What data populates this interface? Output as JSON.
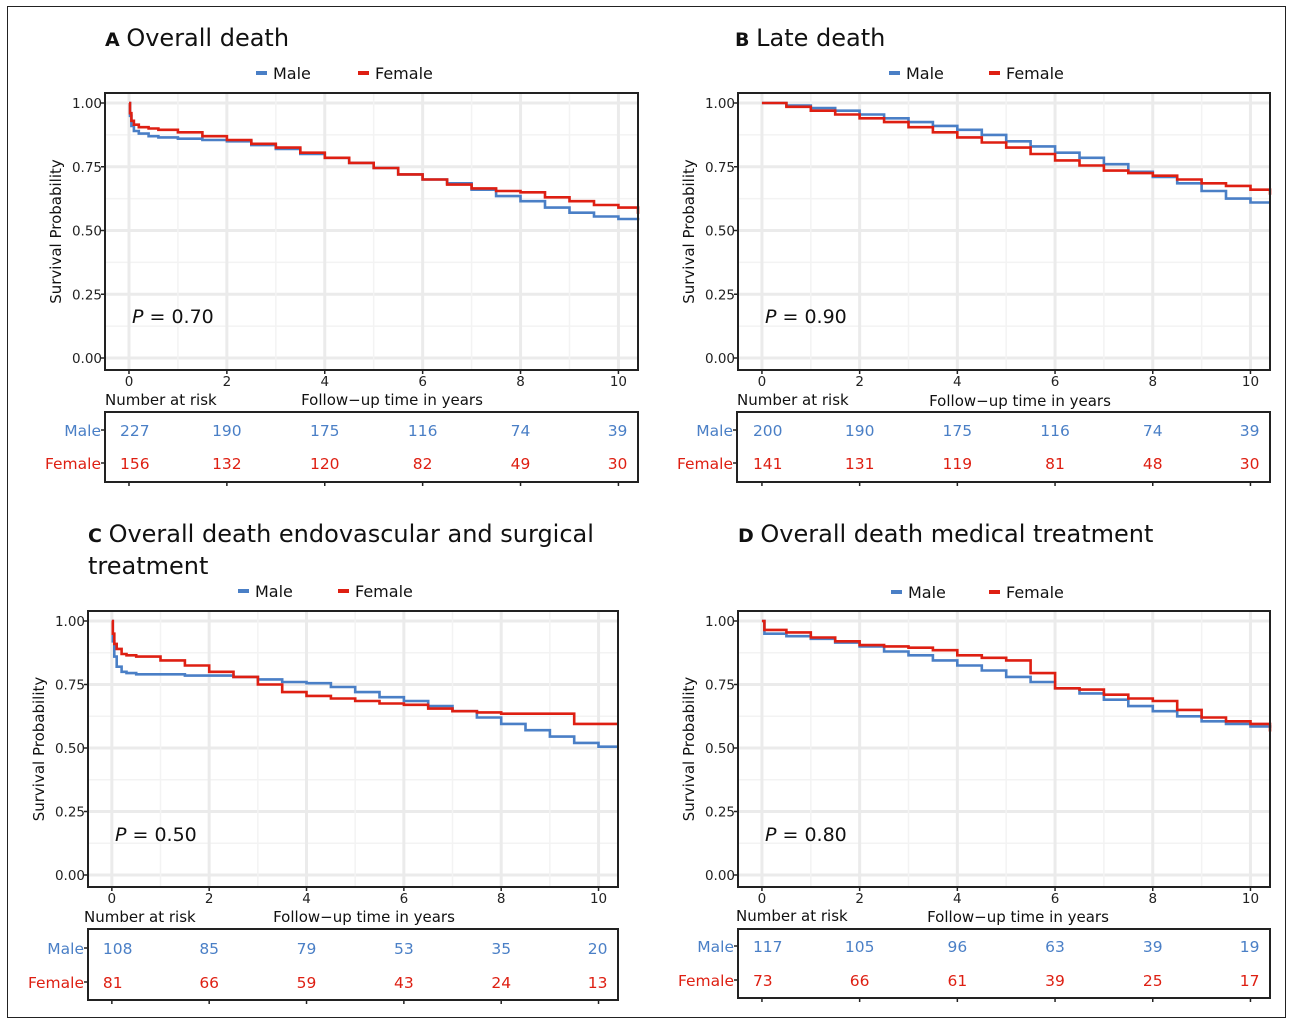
{
  "series_colors": {
    "Male": "#4a7fc6",
    "Female": "#de1f12"
  },
  "chart_data": [
    {
      "type": "line",
      "panel_letter": "A",
      "title": "Overall death",
      "legend": [
        "Male",
        "Female"
      ],
      "legend_position": "top",
      "xlabel": "Follow−up time in years",
      "ylabel": "Survival Probability",
      "xlim": [
        0,
        10.4
      ],
      "ylim": [
        0,
        1
      ],
      "xticks": [
        "0",
        "2",
        "4",
        "6",
        "8",
        "10"
      ],
      "yticks": [
        "0.00",
        "0.25",
        "0.50",
        "0.75",
        "1.00"
      ],
      "grid": true,
      "pvalue": "P = 0.70",
      "series": [
        {
          "name": "Male",
          "x": [
            0,
            0.02,
            0.05,
            0.1,
            0.2,
            0.4,
            0.6,
            1,
            1.5,
            2,
            2.5,
            3,
            3.5,
            4,
            4.5,
            5,
            5.5,
            6,
            6.5,
            7,
            7.5,
            8,
            8.5,
            9,
            9.5,
            10,
            10.4
          ],
          "y": [
            1,
            0.95,
            0.91,
            0.89,
            0.88,
            0.87,
            0.865,
            0.86,
            0.855,
            0.85,
            0.835,
            0.82,
            0.8,
            0.785,
            0.765,
            0.745,
            0.72,
            0.7,
            0.685,
            0.66,
            0.635,
            0.615,
            0.59,
            0.57,
            0.555,
            0.545,
            0.54
          ]
        },
        {
          "name": "Female",
          "x": [
            0,
            0.02,
            0.05,
            0.1,
            0.2,
            0.4,
            0.6,
            1,
            1.5,
            2,
            2.5,
            3,
            3.5,
            4,
            4.5,
            5,
            5.5,
            6,
            6.5,
            7,
            7.5,
            8,
            8.5,
            9,
            9.5,
            10,
            10.4
          ],
          "y": [
            1,
            0.96,
            0.93,
            0.915,
            0.905,
            0.9,
            0.895,
            0.885,
            0.87,
            0.855,
            0.84,
            0.825,
            0.805,
            0.785,
            0.765,
            0.745,
            0.72,
            0.7,
            0.68,
            0.665,
            0.655,
            0.65,
            0.63,
            0.615,
            0.6,
            0.59,
            0.565
          ]
        }
      ],
      "risk_table": {
        "title": "Number at risk",
        "rows": [
          {
            "name": "Male",
            "values": [
              "227",
              "190",
              "175",
              "116",
              "74",
              "39"
            ]
          },
          {
            "name": "Female",
            "values": [
              "156",
              "132",
              "120",
              "82",
              "49",
              "30"
            ]
          }
        ]
      }
    },
    {
      "type": "line",
      "panel_letter": "B",
      "title": "Late death",
      "legend": [
        "Male",
        "Female"
      ],
      "legend_position": "top",
      "xlabel": "Follow−up time in years",
      "ylabel": "Survival Probability",
      "xlim": [
        0,
        10.4
      ],
      "ylim": [
        0,
        1
      ],
      "xticks": [
        "0",
        "2",
        "4",
        "6",
        "8",
        "10"
      ],
      "yticks": [
        "0.00",
        "0.25",
        "0.50",
        "0.75",
        "1.00"
      ],
      "grid": true,
      "pvalue": "P = 0.90",
      "series": [
        {
          "name": "Male",
          "x": [
            0,
            0.5,
            1,
            1.5,
            2,
            2.5,
            3,
            3.5,
            4,
            4.5,
            5,
            5.5,
            6,
            6.5,
            7,
            7.5,
            8,
            8.5,
            9,
            9.5,
            10,
            10.4
          ],
          "y": [
            1,
            0.99,
            0.98,
            0.97,
            0.955,
            0.94,
            0.925,
            0.91,
            0.895,
            0.875,
            0.85,
            0.83,
            0.805,
            0.785,
            0.76,
            0.73,
            0.71,
            0.685,
            0.655,
            0.625,
            0.61,
            0.61
          ]
        },
        {
          "name": "Female",
          "x": [
            0,
            0.5,
            1,
            1.5,
            2,
            2.5,
            3,
            3.5,
            4,
            4.5,
            5,
            5.5,
            6,
            6.5,
            7,
            7.5,
            8,
            8.5,
            9,
            9.5,
            10,
            10.4
          ],
          "y": [
            1,
            0.985,
            0.97,
            0.955,
            0.94,
            0.925,
            0.905,
            0.885,
            0.865,
            0.845,
            0.825,
            0.8,
            0.775,
            0.755,
            0.735,
            0.725,
            0.715,
            0.7,
            0.685,
            0.675,
            0.66,
            0.64
          ]
        }
      ],
      "risk_table": {
        "title": "Number at risk",
        "rows": [
          {
            "name": "Male",
            "values": [
              "200",
              "190",
              "175",
              "116",
              "74",
              "39"
            ]
          },
          {
            "name": "Female",
            "values": [
              "141",
              "131",
              "119",
              "81",
              "48",
              "30"
            ]
          }
        ]
      }
    },
    {
      "type": "line",
      "panel_letter": "C",
      "title": "Overall death endovascular and surgical treatment",
      "legend": [
        "Male",
        "Female"
      ],
      "legend_position": "top",
      "xlabel": "Follow−up time in years",
      "ylabel": "Survival Probability",
      "xlim": [
        0,
        10.4
      ],
      "ylim": [
        0,
        1
      ],
      "xticks": [
        "0",
        "2",
        "4",
        "6",
        "8",
        "10"
      ],
      "yticks": [
        "0.00",
        "0.25",
        "0.50",
        "0.75",
        "1.00"
      ],
      "grid": true,
      "pvalue": "P = 0.50",
      "series": [
        {
          "name": "Male",
          "x": [
            0,
            0.02,
            0.05,
            0.1,
            0.2,
            0.3,
            0.5,
            1,
            1.5,
            2,
            2.5,
            3,
            3.5,
            4,
            4.5,
            5,
            5.5,
            6,
            6.5,
            7,
            7.5,
            8,
            8.5,
            9,
            9.5,
            10,
            10.4
          ],
          "y": [
            1,
            0.92,
            0.86,
            0.82,
            0.8,
            0.795,
            0.79,
            0.79,
            0.785,
            0.785,
            0.78,
            0.77,
            0.76,
            0.755,
            0.74,
            0.72,
            0.7,
            0.685,
            0.665,
            0.645,
            0.62,
            0.595,
            0.57,
            0.545,
            0.52,
            0.505,
            0.505
          ]
        },
        {
          "name": "Female",
          "x": [
            0,
            0.02,
            0.05,
            0.1,
            0.2,
            0.3,
            0.5,
            1,
            1.5,
            2,
            2.5,
            3,
            3.5,
            4,
            4.5,
            5,
            5.5,
            6,
            6.5,
            7,
            7.5,
            8,
            8.5,
            9,
            9.4,
            9.5,
            10,
            10.4
          ],
          "y": [
            1,
            0.95,
            0.91,
            0.89,
            0.87,
            0.865,
            0.86,
            0.845,
            0.825,
            0.8,
            0.78,
            0.75,
            0.72,
            0.705,
            0.695,
            0.685,
            0.675,
            0.67,
            0.655,
            0.645,
            0.64,
            0.635,
            0.635,
            0.635,
            0.635,
            0.595,
            0.595,
            0.595
          ]
        }
      ],
      "risk_table": {
        "title": "Number at risk",
        "rows": [
          {
            "name": "Male",
            "values": [
              "108",
              "85",
              "79",
              "53",
              "35",
              "20"
            ]
          },
          {
            "name": "Female",
            "values": [
              "81",
              "66",
              "59",
              "43",
              "24",
              "13"
            ]
          }
        ]
      }
    },
    {
      "type": "line",
      "panel_letter": "D",
      "title": "Overall death medical treatment",
      "legend": [
        "Male",
        "Female"
      ],
      "legend_position": "top",
      "xlabel": "Follow−up time in years",
      "ylabel": "Survival Probability",
      "xlim": [
        0,
        10.4
      ],
      "ylim": [
        0,
        1
      ],
      "xticks": [
        "0",
        "2",
        "4",
        "6",
        "8",
        "10"
      ],
      "yticks": [
        "0.00",
        "0.25",
        "0.50",
        "0.75",
        "1.00"
      ],
      "grid": true,
      "pvalue": "P = 0.80",
      "series": [
        {
          "name": "Male",
          "x": [
            0,
            0.05,
            0.5,
            1,
            1.5,
            2,
            2.5,
            3,
            3.5,
            4,
            4.5,
            5,
            5.5,
            6,
            6.5,
            7,
            7.5,
            8,
            8.5,
            9,
            9.5,
            10,
            10.4
          ],
          "y": [
            1,
            0.95,
            0.94,
            0.93,
            0.915,
            0.9,
            0.88,
            0.865,
            0.845,
            0.825,
            0.805,
            0.78,
            0.76,
            0.735,
            0.715,
            0.69,
            0.665,
            0.645,
            0.625,
            0.605,
            0.595,
            0.585,
            0.58
          ]
        },
        {
          "name": "Female",
          "x": [
            0,
            0.05,
            0.5,
            1,
            1.5,
            2,
            2.5,
            3,
            3.5,
            4,
            4.5,
            5,
            5.5,
            6,
            6.5,
            7,
            7.5,
            8,
            8.5,
            9,
            9.5,
            10,
            10.4
          ],
          "y": [
            1,
            0.965,
            0.955,
            0.935,
            0.92,
            0.905,
            0.9,
            0.895,
            0.885,
            0.865,
            0.855,
            0.845,
            0.795,
            0.735,
            0.73,
            0.71,
            0.695,
            0.685,
            0.65,
            0.62,
            0.605,
            0.595,
            0.565
          ]
        }
      ],
      "risk_table": {
        "title": "Number at risk",
        "rows": [
          {
            "name": "Male",
            "values": [
              "117",
              "105",
              "96",
              "63",
              "39",
              "19"
            ]
          },
          {
            "name": "Female",
            "values": [
              "73",
              "66",
              "61",
              "39",
              "25",
              "17"
            ]
          }
        ]
      }
    }
  ]
}
